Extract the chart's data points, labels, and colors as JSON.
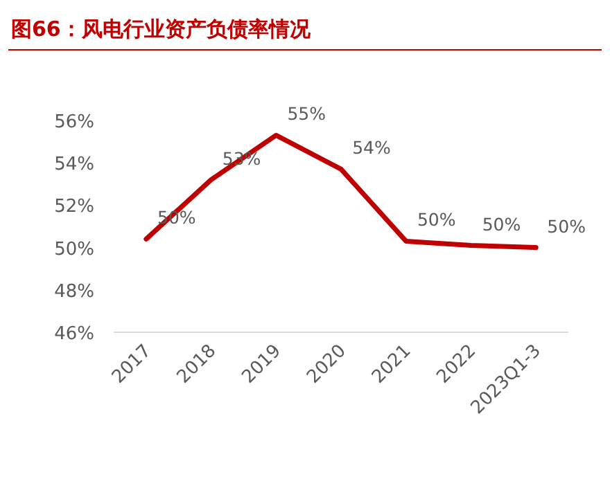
{
  "chart_data": {
    "type": "line",
    "title": "图66：风电行业资产负债率情况",
    "categories": [
      "2017",
      "2018",
      "2019",
      "2020",
      "2021",
      "2022",
      "2023Q1-3"
    ],
    "series": [
      {
        "color": "#c00000",
        "values": [
          50.4,
          53.2,
          55.3,
          53.7,
          50.3,
          50.1,
          50.0
        ],
        "value_labels": [
          "50%",
          "53%",
          "55%",
          "54%",
          "50%",
          "50%",
          "50%"
        ]
      }
    ],
    "ylim": [
      46,
      56
    ],
    "yticks": [
      {
        "value": 46,
        "label": "46%"
      },
      {
        "value": 48,
        "label": "48%"
      },
      {
        "value": 50,
        "label": "50%"
      },
      {
        "value": 52,
        "label": "52%"
      },
      {
        "value": 54,
        "label": "54%"
      },
      {
        "value": 56,
        "label": "56%"
      }
    ],
    "grid": false,
    "marker": "none",
    "line_style": "solid"
  }
}
